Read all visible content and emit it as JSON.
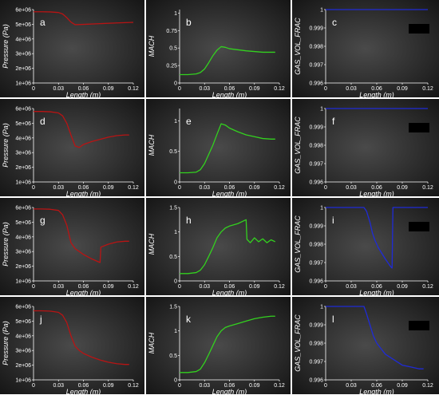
{
  "colors": {
    "pressure": "#b81414",
    "mach": "#33d11f",
    "gas_vol_frac": "#1f2bd6"
  },
  "chart_data": [
    {
      "id": "a",
      "type": "line",
      "kind": "pressure",
      "panel_label": "a",
      "xlabel": "Length (m)",
      "ylabel": "Pressure (Pa)",
      "xlim": [
        0,
        0.12
      ],
      "ylim": [
        1000000,
        6000000
      ],
      "x_ticks": [
        "0",
        "0.03",
        "0.06",
        "0.09",
        "0.12"
      ],
      "y_ticks": [
        "1e+06",
        "2e+06",
        "3e+06",
        "4e+06",
        "5e+06",
        "6e+06"
      ],
      "series": [
        {
          "x": [
            0,
            0.01,
            0.02,
            0.03,
            0.035,
            0.04,
            0.045,
            0.05,
            0.06,
            0.08,
            0.1,
            0.12
          ],
          "y": [
            5850000,
            5850000,
            5840000,
            5800000,
            5700000,
            5450000,
            5150000,
            4970000,
            4990000,
            5040000,
            5090000,
            5130000
          ]
        }
      ]
    },
    {
      "id": "b",
      "type": "line",
      "kind": "mach",
      "panel_label": "b",
      "xlabel": "Length (m)",
      "ylabel": "MACH",
      "xlim": [
        0,
        0.12
      ],
      "ylim": [
        0,
        1.05
      ],
      "x_ticks": [
        "0",
        "0.03",
        "0.06",
        "0.09",
        "0.12"
      ],
      "y_ticks": [
        "0",
        "0.25",
        "0.5",
        "0.75",
        "1"
      ],
      "series": [
        {
          "x": [
            0,
            0.01,
            0.02,
            0.025,
            0.03,
            0.035,
            0.04,
            0.045,
            0.05,
            0.055,
            0.06,
            0.08,
            0.1,
            0.115
          ],
          "y": [
            0.12,
            0.12,
            0.13,
            0.15,
            0.2,
            0.29,
            0.39,
            0.47,
            0.52,
            0.51,
            0.49,
            0.46,
            0.44,
            0.44
          ]
        }
      ]
    },
    {
      "id": "c",
      "type": "line",
      "kind": "gas_vol_frac",
      "panel_label": "c",
      "xlabel": "Length (m)",
      "ylabel": "GAS_VOL_FRAC",
      "xlim": [
        0,
        0.12
      ],
      "ylim": [
        0.996,
        1
      ],
      "x_ticks": [
        "0",
        "0.03",
        "0.06",
        "0.09",
        "0.12"
      ],
      "y_ticks": [
        "0.996",
        "0.997",
        "0.998",
        "0.999",
        "1"
      ],
      "series": [
        {
          "x": [
            0,
            0.12
          ],
          "y": [
            1,
            1
          ]
        }
      ]
    },
    {
      "id": "d",
      "type": "line",
      "kind": "pressure",
      "panel_label": "d",
      "xlabel": "Length (m)",
      "ylabel": "Pressure (Pa)",
      "xlim": [
        0,
        0.12
      ],
      "ylim": [
        1000000,
        6000000
      ],
      "x_ticks": [
        "0",
        "0.03",
        "0.06",
        "0.09",
        "0.12"
      ],
      "y_ticks": [
        "1e+06",
        "2e+06",
        "3e+06",
        "4e+06",
        "5e+06",
        "6e+06"
      ],
      "series": [
        {
          "x": [
            0,
            0.01,
            0.02,
            0.03,
            0.035,
            0.04,
            0.045,
            0.05,
            0.055,
            0.06,
            0.07,
            0.08,
            0.09,
            0.1,
            0.11,
            0.115
          ],
          "y": [
            5800000,
            5800000,
            5780000,
            5700000,
            5500000,
            5000000,
            4200000,
            3450000,
            3350000,
            3550000,
            3750000,
            3900000,
            4050000,
            4150000,
            4200000,
            4200000
          ]
        }
      ]
    },
    {
      "id": "e",
      "type": "line",
      "kind": "mach",
      "panel_label": "e",
      "xlabel": "Length (m)",
      "ylabel": "MACH",
      "xlim": [
        0,
        0.12
      ],
      "ylim": [
        0,
        1.2
      ],
      "x_ticks": [
        "0",
        "0.03",
        "0.06",
        "0.09",
        "0.12"
      ],
      "y_ticks": [
        "0",
        "0.5",
        "1"
      ],
      "series": [
        {
          "x": [
            0,
            0.01,
            0.02,
            0.025,
            0.03,
            0.035,
            0.04,
            0.045,
            0.05,
            0.055,
            0.06,
            0.07,
            0.08,
            0.09,
            0.1,
            0.11,
            0.115
          ],
          "y": [
            0.15,
            0.15,
            0.16,
            0.2,
            0.3,
            0.45,
            0.6,
            0.78,
            0.95,
            0.93,
            0.88,
            0.82,
            0.77,
            0.74,
            0.71,
            0.7,
            0.7
          ]
        }
      ]
    },
    {
      "id": "f",
      "type": "line",
      "kind": "gas_vol_frac",
      "panel_label": "f",
      "xlabel": "Length (m)",
      "ylabel": "GAS_VOL_FRAC",
      "xlim": [
        0,
        0.12
      ],
      "ylim": [
        0.996,
        1
      ],
      "x_ticks": [
        "0",
        "0.03",
        "0.06",
        "0.09",
        "0.12"
      ],
      "y_ticks": [
        "0.996",
        "0.997",
        "0.998",
        "0.999",
        "1"
      ],
      "series": [
        {
          "x": [
            0,
            0.12
          ],
          "y": [
            1,
            1
          ]
        }
      ]
    },
    {
      "id": "g",
      "type": "line",
      "kind": "pressure",
      "panel_label": "g",
      "xlabel": "Length (m)",
      "ylabel": "Pressure (Pa)",
      "xlim": [
        0,
        0.12
      ],
      "ylim": [
        1000000,
        6000000
      ],
      "x_ticks": [
        "0",
        "0.03",
        "0.06",
        "0.09",
        "0.12"
      ],
      "y_ticks": [
        "1e+06",
        "2e+06",
        "3e+06",
        "4e+06",
        "5e+06",
        "6e+06"
      ],
      "series": [
        {
          "x": [
            0,
            0.01,
            0.02,
            0.03,
            0.035,
            0.04,
            0.045,
            0.05,
            0.055,
            0.06,
            0.07,
            0.08,
            0.081,
            0.09,
            0.1,
            0.11,
            0.115
          ],
          "y": [
            5900000,
            5900000,
            5880000,
            5800000,
            5500000,
            4800000,
            3600000,
            3200000,
            3000000,
            2800000,
            2500000,
            2250000,
            3300000,
            3500000,
            3650000,
            3700000,
            3700000
          ]
        }
      ]
    },
    {
      "id": "h",
      "type": "line",
      "kind": "mach",
      "panel_label": "h",
      "xlabel": "Length (m)",
      "ylabel": "MACH",
      "xlim": [
        0,
        0.12
      ],
      "ylim": [
        0,
        1.5
      ],
      "x_ticks": [
        "0",
        "0.03",
        "0.06",
        "0.09",
        "0.12"
      ],
      "y_ticks": [
        "0",
        "0.5",
        "1",
        "1.5"
      ],
      "series": [
        {
          "x": [
            0,
            0.01,
            0.02,
            0.025,
            0.03,
            0.035,
            0.04,
            0.045,
            0.05,
            0.055,
            0.06,
            0.07,
            0.08,
            0.081,
            0.085,
            0.09,
            0.095,
            0.1,
            0.105,
            0.11,
            0.115
          ],
          "y": [
            0.15,
            0.15,
            0.17,
            0.22,
            0.33,
            0.5,
            0.68,
            0.88,
            1.0,
            1.08,
            1.12,
            1.17,
            1.25,
            0.85,
            0.78,
            0.88,
            0.8,
            0.86,
            0.78,
            0.84,
            0.8
          ]
        }
      ]
    },
    {
      "id": "i",
      "type": "line",
      "kind": "gas_vol_frac",
      "panel_label": "i",
      "xlabel": "Length (m)",
      "ylabel": "GAS_VOL_FRAC",
      "xlim": [
        0,
        0.12
      ],
      "ylim": [
        0.996,
        1
      ],
      "x_ticks": [
        "0",
        "0.03",
        "0.06",
        "0.09",
        "0.12"
      ],
      "y_ticks": [
        "0.996",
        "0.997",
        "0.998",
        "0.999",
        "1"
      ],
      "series": [
        {
          "x": [
            0,
            0.045,
            0.048,
            0.052,
            0.055,
            0.058,
            0.062,
            0.066,
            0.07,
            0.073,
            0.076,
            0.078,
            0.079,
            0.12
          ],
          "y": [
            1,
            1,
            0.9998,
            0.9992,
            0.9986,
            0.9982,
            0.9978,
            0.9975,
            0.9972,
            0.997,
            0.9968,
            0.9967,
            1,
            1
          ]
        }
      ]
    },
    {
      "id": "j",
      "type": "line",
      "kind": "pressure",
      "panel_label": "j",
      "xlabel": "Length (m)",
      "ylabel": "Pressure (Pa)",
      "xlim": [
        0,
        0.12
      ],
      "ylim": [
        1000000,
        6000000
      ],
      "x_ticks": [
        "0",
        "0.03",
        "0.06",
        "0.09",
        "0.12"
      ],
      "y_ticks": [
        "1e+06",
        "2e+06",
        "3e+06",
        "4e+06",
        "5e+06",
        "6e+06"
      ],
      "series": [
        {
          "x": [
            0,
            0.01,
            0.02,
            0.03,
            0.035,
            0.04,
            0.045,
            0.05,
            0.055,
            0.06,
            0.07,
            0.08,
            0.09,
            0.1,
            0.11,
            0.115
          ],
          "y": [
            5700000,
            5700000,
            5680000,
            5600000,
            5400000,
            4900000,
            4000000,
            3300000,
            3000000,
            2800000,
            2550000,
            2350000,
            2200000,
            2100000,
            2050000,
            2050000
          ]
        }
      ]
    },
    {
      "id": "k",
      "type": "line",
      "kind": "mach",
      "panel_label": "k",
      "xlabel": "Length (m)",
      "ylabel": "MACH",
      "xlim": [
        0,
        0.12
      ],
      "ylim": [
        0,
        1.5
      ],
      "x_ticks": [
        "0",
        "0.03",
        "0.06",
        "0.09",
        "0.12"
      ],
      "y_ticks": [
        "0",
        "0.5",
        "1",
        "1.5"
      ],
      "series": [
        {
          "x": [
            0,
            0.01,
            0.02,
            0.025,
            0.03,
            0.035,
            0.04,
            0.045,
            0.05,
            0.055,
            0.06,
            0.07,
            0.08,
            0.09,
            0.1,
            0.11,
            0.115
          ],
          "y": [
            0.15,
            0.15,
            0.17,
            0.22,
            0.35,
            0.52,
            0.7,
            0.88,
            1.0,
            1.07,
            1.1,
            1.15,
            1.2,
            1.25,
            1.28,
            1.3,
            1.3
          ]
        }
      ]
    },
    {
      "id": "l",
      "type": "line",
      "kind": "gas_vol_frac",
      "panel_label": "l",
      "xlabel": "Length (m)",
      "ylabel": "GAS_VOL_FRAC",
      "xlim": [
        0,
        0.12
      ],
      "ylim": [
        0.996,
        1
      ],
      "x_ticks": [
        "0",
        "0.03",
        "0.06",
        "0.09",
        "0.12"
      ],
      "y_ticks": [
        "0.996",
        "0.997",
        "0.998",
        "0.999",
        "1"
      ],
      "series": [
        {
          "x": [
            0,
            0.045,
            0.048,
            0.052,
            0.056,
            0.06,
            0.065,
            0.07,
            0.08,
            0.09,
            0.1,
            0.11,
            0.115
          ],
          "y": [
            1,
            1,
            0.9996,
            0.999,
            0.9984,
            0.998,
            0.9977,
            0.9974,
            0.9971,
            0.9968,
            0.9967,
            0.9966,
            0.9966
          ]
        }
      ]
    }
  ]
}
